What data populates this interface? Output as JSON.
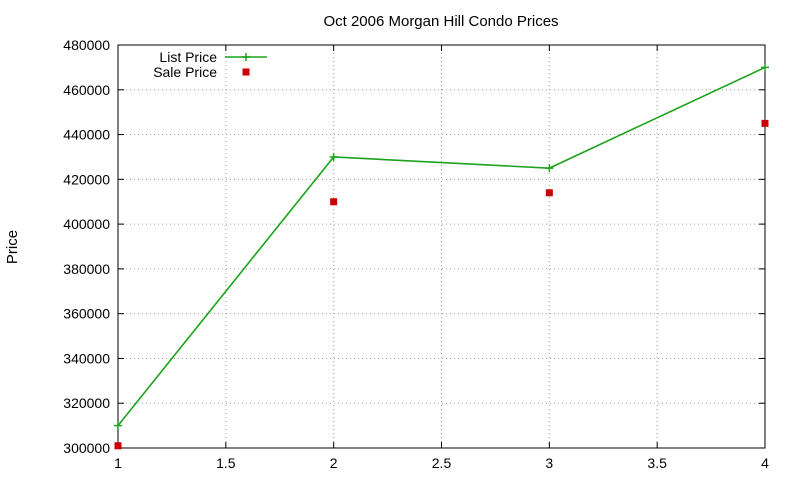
{
  "chart_data": {
    "type": "line",
    "title": "Oct 2006 Morgan Hill Condo Prices",
    "xlabel": "",
    "ylabel": "Price",
    "xlim": [
      1,
      4
    ],
    "ylim": [
      300000,
      480000
    ],
    "xticks": [
      "1",
      "1.5",
      "2",
      "2.5",
      "3",
      "3.5",
      "4"
    ],
    "yticks": [
      "300000",
      "320000",
      "340000",
      "360000",
      "380000",
      "400000",
      "420000",
      "440000",
      "460000",
      "480000"
    ],
    "grid": true,
    "legend": "top-left",
    "x": [
      1,
      2,
      3,
      4
    ],
    "series": [
      {
        "name": "List Price",
        "style": "line-with-plus-markers",
        "color": "#1ca31c",
        "values": [
          310000,
          430000,
          425000,
          470000
        ]
      },
      {
        "name": "Sale Price",
        "style": "square-markers",
        "color": "#cc0000",
        "values": [
          301000,
          410000,
          414000,
          445000
        ]
      }
    ]
  }
}
